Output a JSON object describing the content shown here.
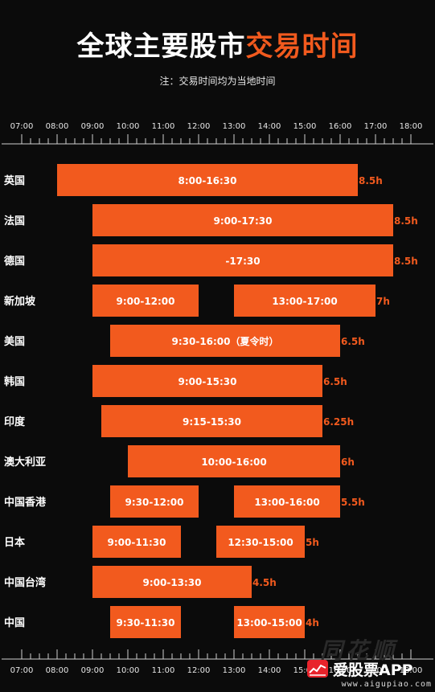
{
  "title": {
    "main": "全球主要股市",
    "highlight": "交易时间"
  },
  "note": "注：交易时间均为当地时间",
  "watermark": "同花顺",
  "brand": {
    "name": "爱股票APP",
    "site": "www.aigupiao.com"
  },
  "colors": {
    "accent": "#f25a1e",
    "bar": "#f25a1e",
    "bg": "#0b0b0b"
  },
  "chart_data": {
    "type": "bar",
    "orientation": "horizontal-range",
    "x_ticks": [
      "07:00",
      "08:00",
      "09:00",
      "10:00",
      "11:00",
      "12:00",
      "13:00",
      "14:00",
      "15:00",
      "16:00",
      "17:00",
      "18:00"
    ],
    "xlim": [
      "07:00",
      "18:00"
    ],
    "categories": [
      "英国",
      "法国",
      "德国",
      "新加坡",
      "美国",
      "韩国",
      "印度",
      "澳大利亚",
      "中国香港",
      "日本",
      "中国台湾",
      "中国"
    ],
    "rows": [
      {
        "market": "英国",
        "total": "8.5h",
        "sessions": [
          {
            "start": "08:00",
            "end": "16:30",
            "label": "8:00-16:30"
          }
        ]
      },
      {
        "market": "法国",
        "total": "8.5h",
        "sessions": [
          {
            "start": "09:00",
            "end": "17:30",
            "label": "9:00-17:30"
          }
        ]
      },
      {
        "market": "德国",
        "total": "8.5h",
        "sessions": [
          {
            "start": "09:00",
            "end": "17:30",
            "label": "-17:30"
          }
        ]
      },
      {
        "market": "新加坡",
        "total": "7h",
        "sessions": [
          {
            "start": "09:00",
            "end": "12:00",
            "label": "9:00-12:00"
          },
          {
            "start": "13:00",
            "end": "17:00",
            "label": "13:00-17:00"
          }
        ]
      },
      {
        "market": "美国",
        "total": "6.5h",
        "sessions": [
          {
            "start": "09:30",
            "end": "16:00",
            "label": "9:30-16:00（夏令时）"
          }
        ]
      },
      {
        "market": "韩国",
        "total": "6.5h",
        "sessions": [
          {
            "start": "09:00",
            "end": "15:30",
            "label": "9:00-15:30"
          }
        ]
      },
      {
        "market": "印度",
        "total": "6.25h",
        "sessions": [
          {
            "start": "09:15",
            "end": "15:30",
            "label": "9:15-15:30"
          }
        ]
      },
      {
        "market": "澳大利亚",
        "total": "6h",
        "sessions": [
          {
            "start": "10:00",
            "end": "16:00",
            "label": "10:00-16:00"
          }
        ]
      },
      {
        "market": "中国香港",
        "total": "5.5h",
        "sessions": [
          {
            "start": "09:30",
            "end": "12:00",
            "label": "9:30-12:00"
          },
          {
            "start": "13:00",
            "end": "16:00",
            "label": "13:00-16:00"
          }
        ]
      },
      {
        "market": "日本",
        "total": "5h",
        "sessions": [
          {
            "start": "09:00",
            "end": "11:30",
            "label": "9:00-11:30"
          },
          {
            "start": "12:30",
            "end": "15:00",
            "label": "12:30-15:00"
          }
        ]
      },
      {
        "market": "中国台湾",
        "total": "4.5h",
        "sessions": [
          {
            "start": "09:00",
            "end": "13:30",
            "label": "9:00-13:30"
          }
        ]
      },
      {
        "market": "中国",
        "total": "4h",
        "sessions": [
          {
            "start": "09:30",
            "end": "11:30",
            "label": "9:30-11:30"
          },
          {
            "start": "13:00",
            "end": "15:00",
            "label": "13:00-15:00"
          }
        ]
      }
    ]
  }
}
